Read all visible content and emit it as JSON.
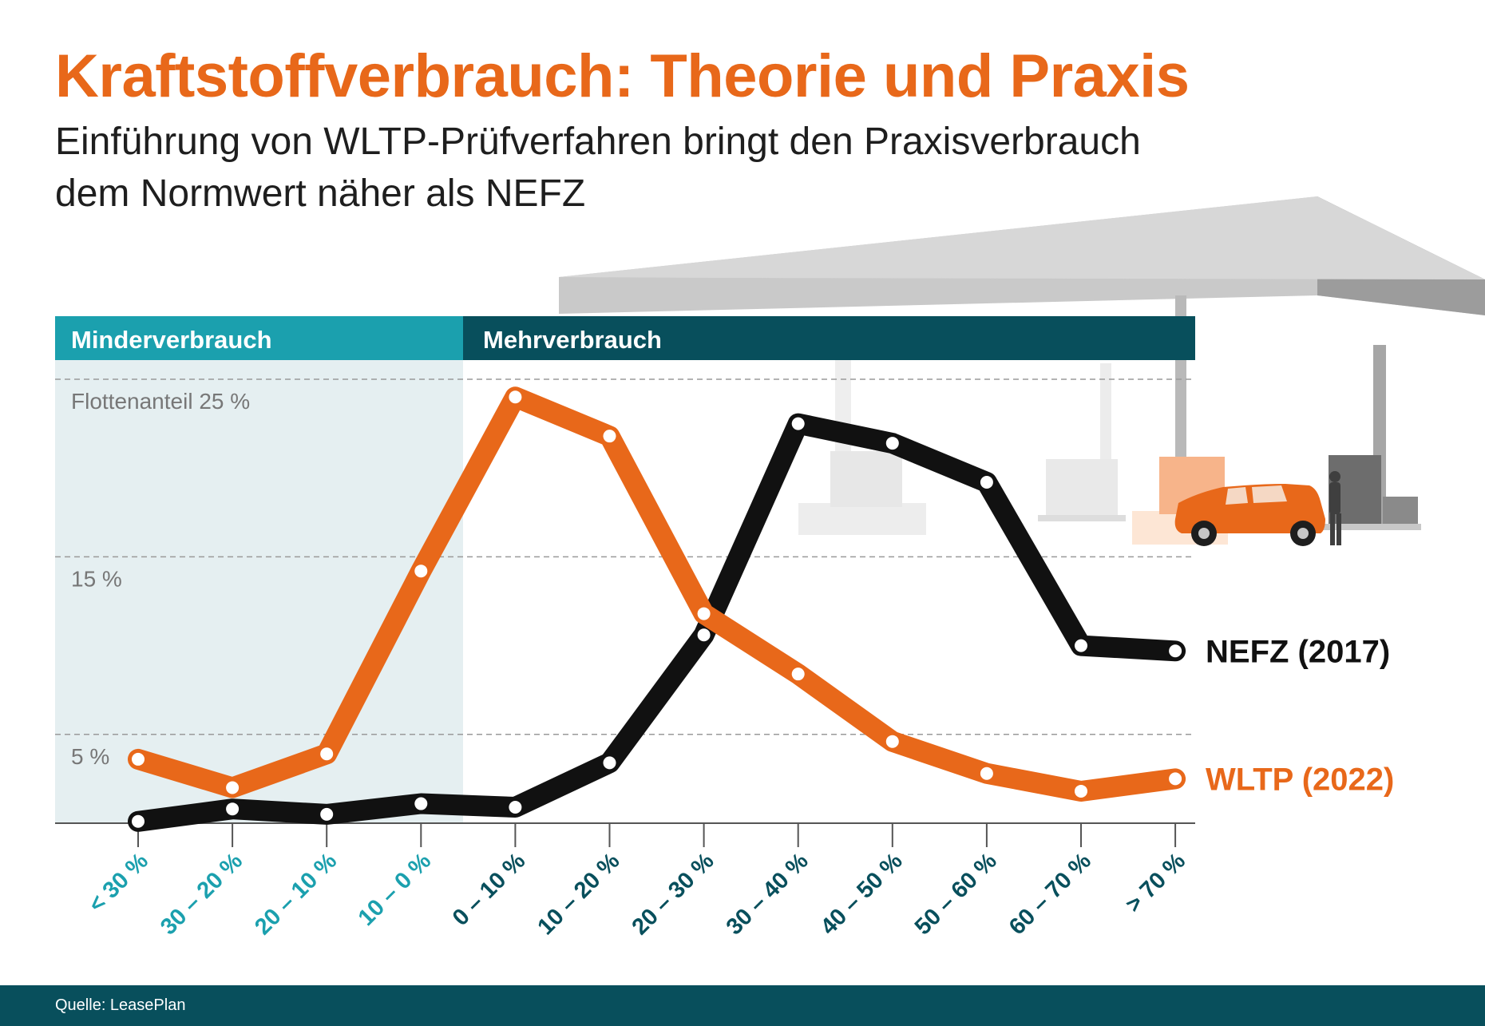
{
  "title": "Kraftstoffverbrauch: Theorie und Praxis",
  "subtitle": {
    "line1": "Einführung von WLTP-Prüfverfahren bringt den Praxisverbrauch",
    "line2": "dem Normwert näher als NEFZ"
  },
  "bands": {
    "minder": "Minderverbrauch",
    "mehr": "Mehrverbrauch"
  },
  "source": "Quelle: LeasePlan",
  "colors": {
    "orange": "#e8681a",
    "black": "#111111",
    "teal": "#1ba0ae",
    "dark_teal": "#084f5c",
    "minder_bg": "#e5eff1"
  },
  "chart_data": {
    "type": "line",
    "title": "Kraftstoffverbrauch: Theorie und Praxis",
    "xlabel": "",
    "ylabel": "Flottenanteil",
    "ylim": [
      0,
      25
    ],
    "yticks": [
      {
        "value": 25,
        "label": "Flottenanteil 25 %"
      },
      {
        "value": 15,
        "label": "15 %"
      },
      {
        "value": 5,
        "label": "5 %"
      }
    ],
    "grid": true,
    "categories": [
      "< 30 %",
      "30 – 20 %",
      "20 – 10 %",
      "10 – 0 %",
      "0 – 10 %",
      "10 – 20 %",
      "20 – 30 %",
      "30 – 40 %",
      "40 – 50 %",
      "50 – 60 %",
      "60 – 70 %",
      "> 70 %"
    ],
    "category_groups": [
      "minder",
      "minder",
      "minder",
      "minder",
      "mehr",
      "mehr",
      "mehr",
      "mehr",
      "mehr",
      "mehr",
      "mehr",
      "mehr"
    ],
    "series": [
      {
        "name": "NEFZ (2017)",
        "color": "#111111",
        "values": [
          0.1,
          0.8,
          0.5,
          1.1,
          0.9,
          3.4,
          10.6,
          22.5,
          21.4,
          19.2,
          10.0,
          9.7
        ]
      },
      {
        "name": "WLTP (2022)",
        "color": "#e8681a",
        "values": [
          3.6,
          2.0,
          3.9,
          14.2,
          24.0,
          21.8,
          11.8,
          8.4,
          4.6,
          2.8,
          1.8,
          2.5
        ]
      }
    ]
  }
}
